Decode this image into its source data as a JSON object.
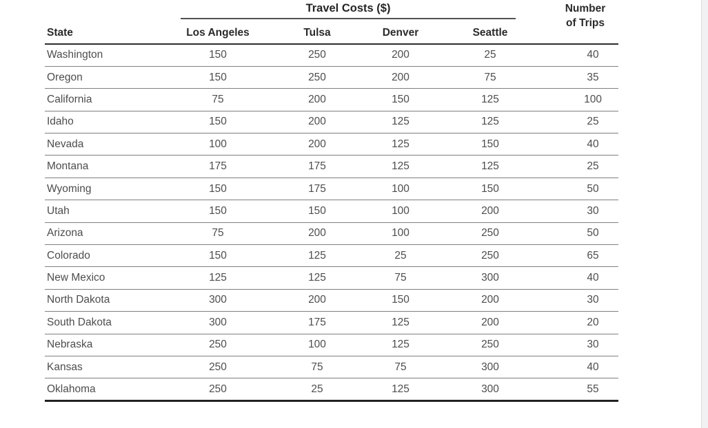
{
  "page": {
    "background_color": "#ffffff",
    "right_strip_color": "#f1f1f3"
  },
  "table": {
    "spanner_header": "Travel Costs ($)",
    "state_header": "State",
    "city_headers": [
      "Los Angeles",
      "Tulsa",
      "Denver",
      "Seattle"
    ],
    "trips_header_line1": "Number",
    "trips_header_line2": "of Trips",
    "rows": [
      {
        "state": "Washington",
        "costs": [
          150,
          250,
          200,
          25
        ],
        "trips": 40
      },
      {
        "state": "Oregon",
        "costs": [
          150,
          250,
          200,
          75
        ],
        "trips": 35
      },
      {
        "state": "California",
        "costs": [
          75,
          200,
          150,
          125
        ],
        "trips": 100
      },
      {
        "state": "Idaho",
        "costs": [
          150,
          200,
          125,
          125
        ],
        "trips": 25
      },
      {
        "state": "Nevada",
        "costs": [
          100,
          200,
          125,
          150
        ],
        "trips": 40
      },
      {
        "state": "Montana",
        "costs": [
          175,
          175,
          125,
          125
        ],
        "trips": 25
      },
      {
        "state": "Wyoming",
        "costs": [
          150,
          175,
          100,
          150
        ],
        "trips": 50
      },
      {
        "state": "Utah",
        "costs": [
          150,
          150,
          100,
          200
        ],
        "trips": 30
      },
      {
        "state": "Arizona",
        "costs": [
          75,
          200,
          100,
          250
        ],
        "trips": 50
      },
      {
        "state": "Colorado",
        "costs": [
          150,
          125,
          25,
          250
        ],
        "trips": 65
      },
      {
        "state": "New Mexico",
        "costs": [
          125,
          125,
          75,
          300
        ],
        "trips": 40
      },
      {
        "state": "North Dakota",
        "costs": [
          300,
          200,
          150,
          200
        ],
        "trips": 30
      },
      {
        "state": "South Dakota",
        "costs": [
          300,
          175,
          125,
          200
        ],
        "trips": 20
      },
      {
        "state": "Nebraska",
        "costs": [
          250,
          100,
          125,
          250
        ],
        "trips": 30
      },
      {
        "state": "Kansas",
        "costs": [
          250,
          75,
          75,
          300
        ],
        "trips": 40
      },
      {
        "state": "Oklahoma",
        "costs": [
          250,
          25,
          125,
          300
        ],
        "trips": 55
      }
    ]
  }
}
